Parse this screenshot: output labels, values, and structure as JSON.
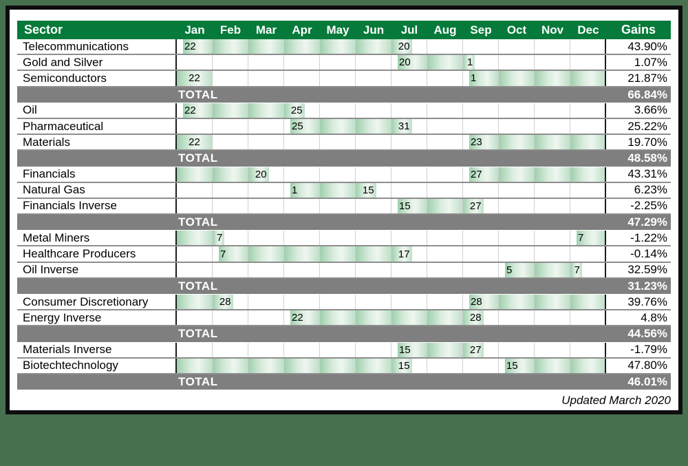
{
  "page": {
    "updated_note": "Updated March 2020"
  },
  "labels": {
    "total": "TOTAL"
  },
  "colors": {
    "page_background": "#47704F",
    "header_green": "#067A3A",
    "total_gray": "#7F7F7F",
    "bar_green_dark": "#9FD0AE",
    "bar_green_light": "#EEF6EF",
    "frame_black": "#0D0D0D"
  },
  "header": {
    "sector": "Sector",
    "months": [
      "Jan",
      "Feb",
      "Mar",
      "Apr",
      "May",
      "Jun",
      "Jul",
      "Aug",
      "Sep",
      "Oct",
      "Nov",
      "Dec"
    ],
    "gains": "Gains"
  },
  "chart_data": {
    "type": "table",
    "title": "Sector seasonal trade spans by month with entry/exit day labels and gains",
    "columns": [
      "Sector",
      "Jan",
      "Feb",
      "Mar",
      "Apr",
      "May",
      "Jun",
      "Jul",
      "Aug",
      "Sep",
      "Oct",
      "Nov",
      "Dec",
      "Gains"
    ],
    "cell_legend": "w = white/empty, g = green bar, s:N = bar start with day label N, e:N = bar end with day label N, f:N = single full green cell with day label N",
    "groups": [
      {
        "rows": [
          {
            "sector": "Telecommunications",
            "cells": [
              "s:22",
              "g",
              "g",
              "g",
              "g",
              "g",
              "e:20",
              "w",
              "w",
              "w",
              "w",
              "w"
            ],
            "gains": "43.90%"
          },
          {
            "sector": "Gold and Silver",
            "cells": [
              "w",
              "w",
              "w",
              "w",
              "w",
              "w",
              "s:20",
              "g",
              "e:1",
              "w",
              "w",
              "w"
            ],
            "gains": "1.07%"
          },
          {
            "sector": "Semiconductors",
            "cells": [
              "f:22",
              "w",
              "w",
              "w",
              "w",
              "w",
              "w",
              "w",
              "s:1",
              "g",
              "g",
              "g"
            ],
            "gains": "21.87%"
          }
        ],
        "total_gains": "66.84%"
      },
      {
        "rows": [
          {
            "sector": "Oil",
            "cells": [
              "s:22",
              "g",
              "g",
              "e:25",
              "w",
              "w",
              "w",
              "w",
              "w",
              "w",
              "w",
              "w"
            ],
            "gains": "3.66%"
          },
          {
            "sector": "Pharmaceutical",
            "cells": [
              "w",
              "w",
              "w",
              "s:25",
              "g",
              "g",
              "e:31",
              "w",
              "w",
              "w",
              "w",
              "w"
            ],
            "gains": "25.22%"
          },
          {
            "sector": "Materials",
            "cells": [
              "f:22",
              "w",
              "w",
              "w",
              "w",
              "w",
              "w",
              "w",
              "s:23",
              "g",
              "g",
              "g"
            ],
            "gains": "19.70%"
          }
        ],
        "total_gains": "48.58%"
      },
      {
        "rows": [
          {
            "sector": "Financials",
            "cells": [
              "g",
              "g",
              "e:20",
              "w",
              "w",
              "w",
              "w",
              "w",
              "s:27",
              "g",
              "g",
              "g"
            ],
            "gains": "43.31%"
          },
          {
            "sector": "Natural Gas",
            "cells": [
              "w",
              "w",
              "w",
              "s:1",
              "g",
              "e:15",
              "w",
              "w",
              "w",
              "w",
              "w",
              "w"
            ],
            "gains": "6.23%"
          },
          {
            "sector": "Financials Inverse",
            "cells": [
              "w",
              "w",
              "w",
              "w",
              "w",
              "w",
              "s:15",
              "g",
              "e:27",
              "w",
              "w",
              "w"
            ],
            "gains": "-2.25%"
          }
        ],
        "total_gains": "47.29%"
      },
      {
        "rows": [
          {
            "sector": "Metal Miners",
            "cells": [
              "g",
              "e:7",
              "w",
              "w",
              "w",
              "w",
              "w",
              "w",
              "w",
              "w",
              "w",
              "s:7"
            ],
            "gains": "-1.22%"
          },
          {
            "sector": "Healthcare Producers",
            "cells": [
              "w",
              "s:7",
              "g",
              "g",
              "g",
              "g",
              "e:17",
              "w",
              "w",
              "w",
              "w",
              "w"
            ],
            "gains": "-0.14%"
          },
          {
            "sector": "Oil Inverse",
            "cells": [
              "w",
              "w",
              "w",
              "w",
              "w",
              "w",
              "w",
              "w",
              "w",
              "s:5",
              "g",
              "e:7"
            ],
            "gains": "32.59%"
          }
        ],
        "total_gains": "31.23%"
      },
      {
        "rows": [
          {
            "sector": "Consumer Discretionary",
            "cells": [
              "g",
              "e:28",
              "w",
              "w",
              "w",
              "w",
              "w",
              "w",
              "s:28",
              "g",
              "g",
              "g"
            ],
            "gains": "39.76%"
          },
          {
            "sector": "Energy Inverse",
            "cells": [
              "w",
              "w",
              "w",
              "s:22",
              "g",
              "g",
              "g",
              "g",
              "e:28",
              "w",
              "w",
              "w"
            ],
            "gains": "4.8%"
          }
        ],
        "total_gains": "44.56%"
      },
      {
        "rows": [
          {
            "sector": "Materials Inverse",
            "cells": [
              "w",
              "w",
              "w",
              "w",
              "w",
              "w",
              "s:15",
              "g",
              "e:27",
              "w",
              "w",
              "w"
            ],
            "gains": "-1.79%"
          },
          {
            "sector": "Biotechtechnology",
            "cells": [
              "g",
              "g",
              "g",
              "g",
              "g",
              "g",
              "e:15",
              "w",
              "w",
              "s:15",
              "g",
              "g"
            ],
            "gains": "47.80%"
          }
        ],
        "total_gains": "46.01%"
      }
    ]
  }
}
